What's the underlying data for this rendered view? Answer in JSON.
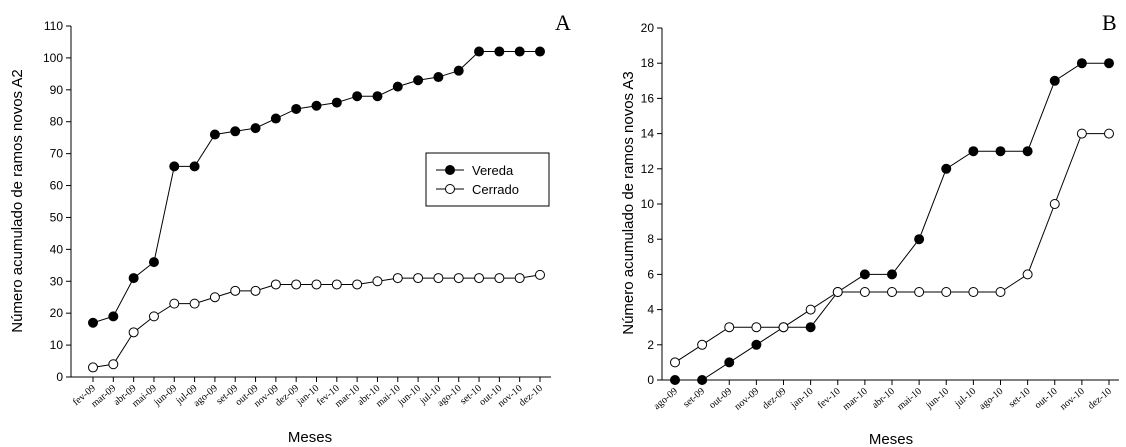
{
  "chart_data": [
    {
      "type": "line",
      "panel_label": "A",
      "xlabel": "Meses",
      "ylabel": "Número acumulado de ramos novos A2",
      "ylim": [
        0,
        110
      ],
      "yticks": [
        0,
        10,
        20,
        30,
        40,
        50,
        60,
        70,
        80,
        90,
        100,
        110
      ],
      "categories": [
        "fev-09",
        "mar-09",
        "abr-09",
        "mai-09",
        "jun-09",
        "jul-09",
        "ago-09",
        "set-09",
        "out-09",
        "nov-09",
        "dez-09",
        "jan-10",
        "fev-10",
        "mar-10",
        "abr-10",
        "mai-10",
        "jun-10",
        "jul-10",
        "ago-10",
        "set-10",
        "out-10",
        "nov-10",
        "dez-10"
      ],
      "series": [
        {
          "name": "Vereda",
          "marker": "filled-circle",
          "values": [
            17,
            19,
            31,
            36,
            66,
            66,
            76,
            77,
            78,
            81,
            84,
            85,
            86,
            88,
            88,
            91,
            93,
            94,
            96,
            102,
            102,
            102,
            102
          ]
        },
        {
          "name": "Cerrado",
          "marker": "open-circle",
          "values": [
            3,
            4,
            14,
            19,
            23,
            23,
            25,
            27,
            27,
            29,
            29,
            29,
            29,
            29,
            30,
            31,
            31,
            31,
            31,
            31,
            31,
            31,
            32
          ]
        }
      ],
      "legend": {
        "placement": "center-right",
        "entries": [
          "Vereda",
          "Cerrado"
        ]
      },
      "grid": false
    },
    {
      "type": "line",
      "panel_label": "B",
      "xlabel": "Meses",
      "ylabel": "Número acumulado de ramos novos A3",
      "ylim": [
        0,
        20
      ],
      "yticks": [
        0,
        2,
        4,
        6,
        8,
        10,
        12,
        14,
        16,
        18,
        20
      ],
      "categories": [
        "ago-09",
        "set-09",
        "out-09",
        "nov-09",
        "dez-09",
        "jan-10",
        "fev-10",
        "mar-10",
        "abr-10",
        "mai-10",
        "jun-10",
        "jul-10",
        "ago-10",
        "set-10",
        "out-10",
        "nov-10",
        "dez-10"
      ],
      "series": [
        {
          "name": "Vereda",
          "marker": "filled-circle",
          "values": [
            0,
            0,
            1,
            2,
            3,
            3,
            5,
            6,
            6,
            8,
            12,
            13,
            13,
            13,
            17,
            18,
            18
          ]
        },
        {
          "name": "Cerrado",
          "marker": "open-circle",
          "values": [
            1,
            2,
            3,
            3,
            3,
            4,
            5,
            5,
            5,
            5,
            5,
            5,
            5,
            6,
            10,
            14,
            14
          ]
        }
      ],
      "grid": false
    }
  ]
}
